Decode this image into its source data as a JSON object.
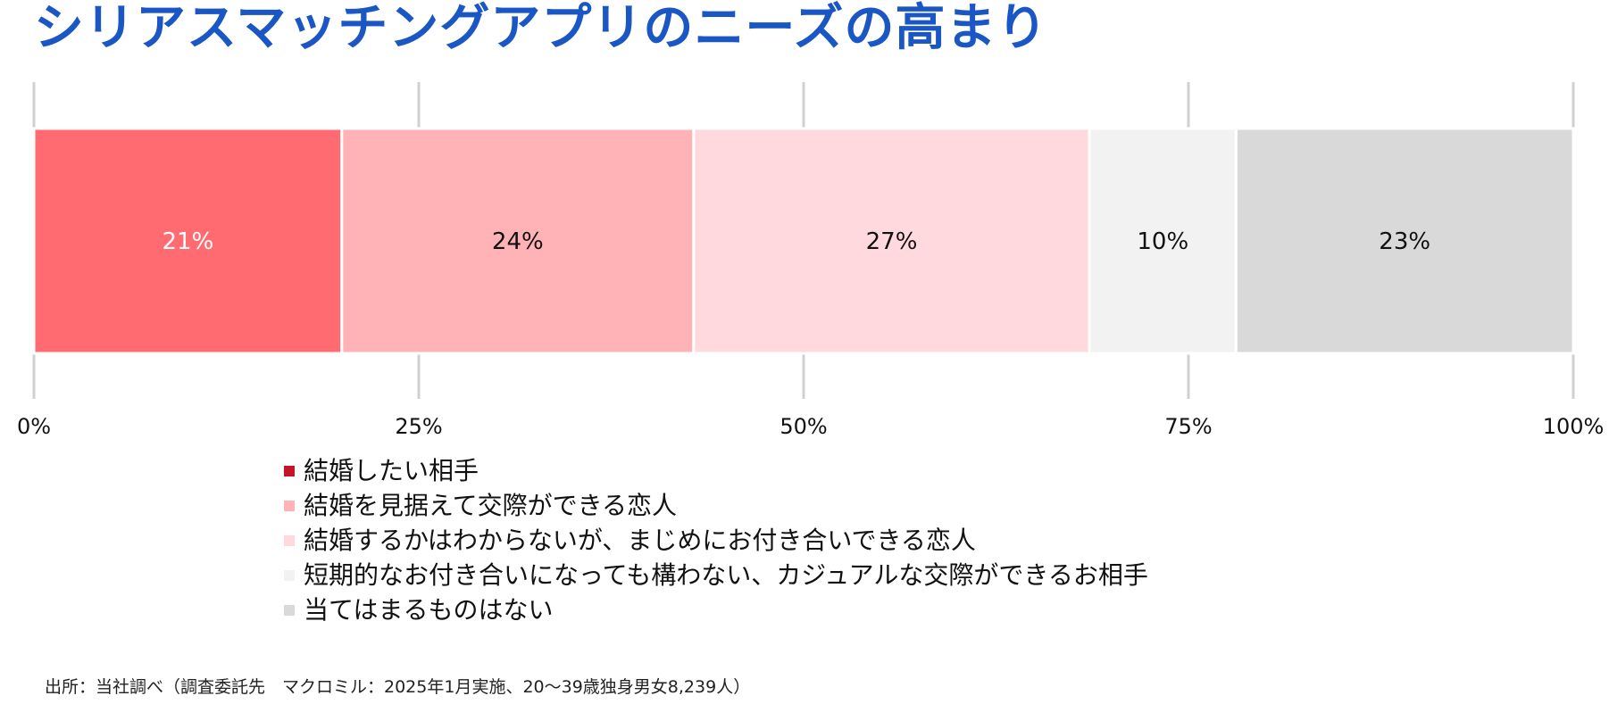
{
  "colors": {
    "title": "#1a56c4",
    "gridline": "#d0d0d0",
    "bar_divider": "#ffffff"
  },
  "chart_data": {
    "type": "bar",
    "orientation": "horizontal",
    "stacked": true,
    "percent_stacked": true,
    "title": "シリアスマッチングアプリのニーズの高まり",
    "xlim": [
      0,
      100
    ],
    "x_ticks": [
      "0%",
      "25%",
      "50%",
      "75%",
      "100%"
    ],
    "grid": true,
    "legend_position": "bottom-left",
    "series": [
      {
        "name": "結婚したい相手",
        "value": 21,
        "label": "21%",
        "color": "#ff6b70",
        "swatch_color": "#c41425",
        "label_color": "#ffffff"
      },
      {
        "name": "結婚を見据えて交際ができる恋人",
        "value": 24,
        "label": "24%",
        "color": "#ffb3b7",
        "swatch_color": "#ffb3b7",
        "label_color": "#111111"
      },
      {
        "name": "結婚するかはわからないが、まじめにお付き合いできる恋人",
        "value": 27,
        "label": "27%",
        "color": "#ffd9dd",
        "swatch_color": "#ffd9dd",
        "label_color": "#111111"
      },
      {
        "name": "短期的なお付き合いになっても構わない、カジュアルな交際ができるお相手",
        "value": 10,
        "label": "10%",
        "color": "#f2f2f2",
        "swatch_color": "#f2f2f2",
        "label_color": "#111111"
      },
      {
        "name": "当てはまるものはない",
        "value": 23,
        "label": "23%",
        "color": "#d9d9d9",
        "swatch_color": "#d9d9d9",
        "label_color": "#111111"
      }
    ]
  },
  "source_note": "出所：当社調べ（調査委託先　マクロミル：2025年1月実施、20～39歳独身男女8,239人）"
}
